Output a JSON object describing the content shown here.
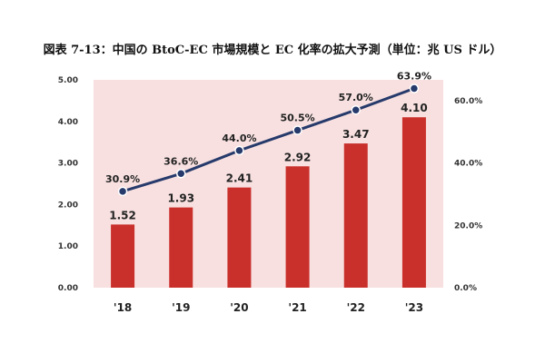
{
  "chart_data": {
    "type": "bar",
    "title": "図表 7-13：中国の BtoC-EC 市場規模と EC 化率の拡大予測（単位：兆 US ドル）",
    "categories": [
      "'18",
      "'19",
      "'20",
      "'21",
      "'22",
      "'23"
    ],
    "series": [
      {
        "type": "bar",
        "axis": "left",
        "values": [
          1.52,
          1.93,
          2.41,
          2.92,
          3.47,
          4.1
        ],
        "labels": [
          "1.52",
          "1.93",
          "2.41",
          "2.92",
          "3.47",
          "4.10"
        ],
        "color": "#c9302c"
      },
      {
        "type": "line",
        "axis": "right",
        "values": [
          30.9,
          36.6,
          44.0,
          50.5,
          57.0,
          63.9
        ],
        "labels": [
          "30.9%",
          "36.6%",
          "44.0%",
          "50.5%",
          "57.0%",
          "63.9%"
        ],
        "color": "#263a6b"
      }
    ],
    "y_left": {
      "min": 0,
      "max": 5,
      "ticks": [
        "0.00",
        "1.00",
        "2.00",
        "3.00",
        "4.00",
        "5.00"
      ]
    },
    "y_right": {
      "min": 0,
      "max": 66.67,
      "ticks": [
        "0.0%",
        "20.0%",
        "40.0%",
        "60.0%"
      ],
      "tick_values": [
        0,
        20,
        40,
        60
      ]
    },
    "plot_background": "#f8e0e0",
    "grid": false,
    "legend": "none"
  }
}
